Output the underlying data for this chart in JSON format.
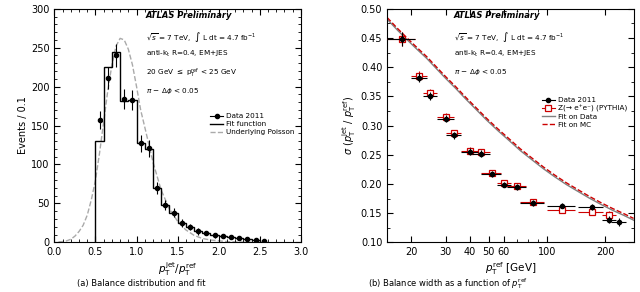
{
  "left": {
    "xlabel": "p_T^{jet} / p_T^{ref}",
    "ylabel": "Events / 0.1",
    "xlim": [
      0,
      3
    ],
    "ylim": [
      0,
      300
    ],
    "yticks": [
      0,
      50,
      100,
      150,
      200,
      250,
      300
    ],
    "xticks": [
      0,
      0.5,
      1,
      1.5,
      2,
      2.5,
      3
    ],
    "data_x": [
      0.55,
      0.65,
      0.75,
      0.85,
      0.95,
      1.05,
      1.15,
      1.25,
      1.35,
      1.45,
      1.55,
      1.65,
      1.75,
      1.85,
      1.95,
      2.05,
      2.15,
      2.25,
      2.35,
      2.45,
      2.55
    ],
    "data_y": [
      157,
      211,
      240,
      184,
      183,
      127,
      121,
      70,
      48,
      38,
      25,
      20,
      14,
      12,
      9,
      8,
      7,
      5,
      4,
      3,
      2
    ],
    "data_yerr": [
      12,
      14,
      15,
      13,
      13,
      11,
      11,
      8,
      7,
      6,
      5,
      4,
      4,
      3,
      3,
      3,
      3,
      2,
      2,
      2,
      1
    ],
    "hist_edges": [
      0.5,
      0.6,
      0.7,
      0.8,
      0.9,
      1.0,
      1.1,
      1.2,
      1.3,
      1.4,
      1.5,
      1.6,
      1.7,
      1.8,
      1.9,
      2.0,
      2.1,
      2.2,
      2.3,
      2.4,
      2.5
    ],
    "hist_values": [
      130,
      225,
      245,
      182,
      183,
      128,
      120,
      70,
      48,
      38,
      25,
      20,
      14,
      12,
      9,
      8,
      7,
      5,
      4,
      3
    ],
    "poisson_x": [
      0.05,
      0.1,
      0.15,
      0.2,
      0.25,
      0.3,
      0.35,
      0.4,
      0.45,
      0.5,
      0.55,
      0.6,
      0.65,
      0.7,
      0.75,
      0.8,
      0.85,
      0.9,
      0.95,
      1.0,
      1.05,
      1.1,
      1.2,
      1.3,
      1.4,
      1.5,
      1.6,
      1.7,
      1.8,
      1.9,
      2.0,
      2.1,
      2.2,
      2.3,
      2.4,
      2.5
    ],
    "poisson_y": [
      0.5,
      1,
      2,
      4,
      8,
      14,
      22,
      35,
      55,
      80,
      115,
      155,
      195,
      228,
      252,
      262,
      260,
      248,
      228,
      200,
      170,
      148,
      103,
      67,
      43,
      27,
      16,
      9,
      5,
      3,
      2,
      1,
      0.5,
      0.3,
      0.1,
      0.05
    ],
    "legend_entries": [
      "Data 2011",
      "Fit function",
      "Underlying Poisson"
    ],
    "atlas_text": "ATLAS Preliminary",
    "info_line1": "√s = 7 TeV,  ∫ L dt = 4.7 fb⁻¹",
    "info_line2": "anti-k_t R=0.4, EM+JES",
    "info_line3": "20 GeV ≤ p_T^{ref} < 25 GeV",
    "info_line4": "π − Δφ < 0.05"
  },
  "right": {
    "xlabel": "p_T^{ref} [GeV]",
    "ylabel": "σ (p_T^{jet} / p_T^{ref})",
    "xlim": [
      15,
      280
    ],
    "ylim": [
      0.1,
      0.5
    ],
    "yticks": [
      0.1,
      0.15,
      0.2,
      0.25,
      0.3,
      0.35,
      0.4,
      0.45,
      0.5
    ],
    "data_x": [
      18,
      22,
      25,
      30,
      33,
      40,
      46,
      52,
      60,
      70,
      85,
      120,
      170,
      210,
      235
    ],
    "data_y": [
      0.449,
      0.382,
      0.35,
      0.312,
      0.283,
      0.255,
      0.252,
      0.217,
      0.199,
      0.195,
      0.167,
      0.163,
      0.161,
      0.139,
      0.135
    ],
    "data_xerr_lo": [
      3,
      2,
      2,
      3,
      3,
      4,
      5,
      6,
      5,
      8,
      12,
      20,
      25,
      18,
      20
    ],
    "data_xerr_hi": [
      3,
      2,
      2,
      3,
      3,
      4,
      5,
      6,
      5,
      8,
      12,
      20,
      25,
      18,
      20
    ],
    "data_yerr": [
      0.012,
      0.008,
      0.007,
      0.006,
      0.006,
      0.006,
      0.006,
      0.005,
      0.005,
      0.005,
      0.005,
      0.005,
      0.005,
      0.006,
      0.007
    ],
    "mc_x": [
      18,
      22,
      25,
      30,
      33,
      40,
      46,
      52,
      60,
      70,
      85,
      120,
      170,
      210
    ],
    "mc_y": [
      0.449,
      0.385,
      0.355,
      0.315,
      0.287,
      0.257,
      0.254,
      0.219,
      0.201,
      0.197,
      0.169,
      0.155,
      0.152,
      0.147
    ],
    "mc_xerr_lo": [
      3,
      2,
      2,
      3,
      3,
      4,
      5,
      6,
      5,
      8,
      12,
      20,
      25,
      18
    ],
    "mc_xerr_hi": [
      3,
      2,
      2,
      3,
      3,
      4,
      5,
      6,
      5,
      8,
      12,
      20,
      25,
      18
    ],
    "mc_yerr": [
      0.012,
      0.008,
      0.007,
      0.006,
      0.006,
      0.006,
      0.006,
      0.005,
      0.005,
      0.005,
      0.005,
      0.005,
      0.005,
      0.006
    ],
    "fit_data_x": [
      15,
      17,
      19,
      21,
      24,
      27,
      30,
      34,
      38,
      43,
      49,
      56,
      64,
      73,
      84,
      96,
      110,
      126,
      145,
      165,
      190,
      218,
      250,
      280
    ],
    "fit_data_y": [
      0.482,
      0.463,
      0.447,
      0.433,
      0.415,
      0.397,
      0.381,
      0.363,
      0.346,
      0.328,
      0.309,
      0.291,
      0.274,
      0.257,
      0.241,
      0.226,
      0.212,
      0.199,
      0.187,
      0.176,
      0.165,
      0.155,
      0.146,
      0.138
    ],
    "fit_mc_x": [
      15,
      17,
      19,
      21,
      24,
      27,
      30,
      34,
      38,
      43,
      49,
      56,
      64,
      73,
      84,
      96,
      110,
      126,
      145,
      165,
      190,
      218,
      250,
      280
    ],
    "fit_mc_y": [
      0.485,
      0.466,
      0.45,
      0.436,
      0.418,
      0.4,
      0.384,
      0.366,
      0.349,
      0.331,
      0.312,
      0.294,
      0.277,
      0.26,
      0.244,
      0.229,
      0.215,
      0.202,
      0.19,
      0.179,
      0.168,
      0.158,
      0.149,
      0.141
    ],
    "legend_entries": [
      "Data 2011",
      "Z(→ e⁺e⁻) (PYTHIA)",
      "Fit on Data",
      "Fit on MC"
    ],
    "atlas_text": "ATLAS Preliminary",
    "info_line1": "√s = 7 TeV,  ∫ L dt = 4.7 fb⁻¹",
    "info_line2": "anti-k_t R=0.4, EM+JES",
    "info_line3": "π − Δφ < 0.05",
    "data_color": "#000000",
    "mc_color": "#cc0000",
    "fit_data_color": "#808080",
    "fit_mc_color": "#cc0000"
  }
}
